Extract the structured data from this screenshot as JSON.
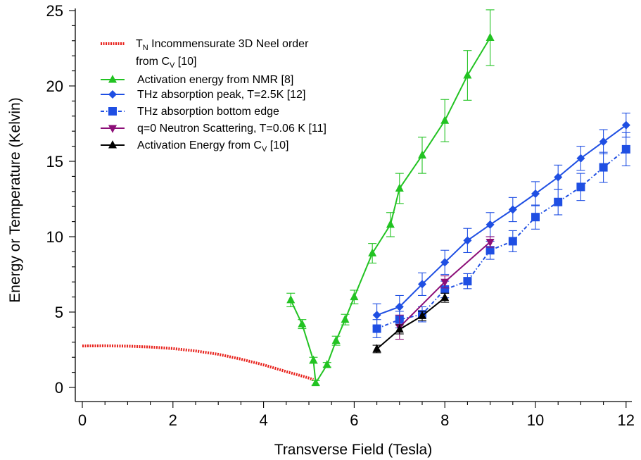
{
  "chart_data": {
    "type": "line",
    "xlabel": "Transverse Field (Tesla)",
    "ylabel": "Energy or Temperature (Kelvin)",
    "xlim": [
      0,
      12
    ],
    "ylim": [
      0,
      25
    ],
    "xticks": [
      "0",
      "2",
      "4",
      "6",
      "8",
      "10",
      "12"
    ],
    "yticks": [
      "0",
      "5",
      "10",
      "15",
      "20",
      "25"
    ],
    "grid": false,
    "legend_position": "top-left",
    "series": [
      {
        "key": "tn",
        "legend": [
          "T",
          "N",
          " Incommensurate 3D Neel order",
          "from C",
          "V",
          " [10]"
        ],
        "color": "#e8221c",
        "line": "dotted",
        "marker": "none",
        "x": [
          0,
          0.5,
          1,
          1.5,
          2,
          2.5,
          3,
          3.5,
          4,
          4.5,
          4.8,
          5.0,
          5.1
        ],
        "y": [
          2.75,
          2.76,
          2.74,
          2.68,
          2.58,
          2.42,
          2.2,
          1.88,
          1.5,
          1.05,
          0.8,
          0.62,
          0.52
        ],
        "err": []
      },
      {
        "key": "nmr",
        "legend": [
          " Activation energy from NMR [8]"
        ],
        "color": "#22c322",
        "line": "solid",
        "marker": "triangle-up",
        "x": [
          4.6,
          4.85,
          5.1,
          5.15,
          5.4,
          5.6,
          5.8,
          6.0,
          6.4,
          6.8,
          7.0,
          7.5,
          8.0,
          8.5,
          9.0
        ],
        "y": [
          5.8,
          4.2,
          1.8,
          0.3,
          1.5,
          3.1,
          4.5,
          6.0,
          8.9,
          10.8,
          13.2,
          15.4,
          17.7,
          20.7,
          23.2
        ],
        "err": [
          0.45,
          0.3,
          0.2,
          0.15,
          0.15,
          0.3,
          0.35,
          0.45,
          0.65,
          0.8,
          1.0,
          1.2,
          1.4,
          1.65,
          1.85
        ]
      },
      {
        "key": "thz_peak",
        "legend": [
          "THz absorption peak, T=2.5K [12]"
        ],
        "color": "#1f4fe3",
        "line": "solid",
        "marker": "diamond",
        "x": [
          6.5,
          7.0,
          7.5,
          8.0,
          8.5,
          9.0,
          9.5,
          10.0,
          10.5,
          11.0,
          11.5,
          12.0
        ],
        "y": [
          4.8,
          5.35,
          6.85,
          8.3,
          9.75,
          10.8,
          11.8,
          12.85,
          13.95,
          15.2,
          16.3,
          17.4
        ],
        "err": [
          0.75,
          0.75,
          0.75,
          0.8,
          0.8,
          0.8,
          0.8,
          0.8,
          0.8,
          0.8,
          0.8,
          0.8
        ]
      },
      {
        "key": "thz_edge",
        "legend": [
          "THz absorption bottom edge"
        ],
        "color": "#1f4fe3",
        "line": "dash-dot",
        "marker": "square",
        "x": [
          6.5,
          7.0,
          7.5,
          8.0,
          8.5,
          9.0,
          9.5,
          10.0,
          10.5,
          11.0,
          11.5,
          12.0
        ],
        "y": [
          3.9,
          4.5,
          4.85,
          6.5,
          7.05,
          9.1,
          9.7,
          11.3,
          12.3,
          13.3,
          14.6,
          15.8
        ],
        "err": [
          0.6,
          0.55,
          0.5,
          0.55,
          0.5,
          0.6,
          0.7,
          0.8,
          0.85,
          0.9,
          1.0,
          1.1
        ]
      },
      {
        "key": "neutron",
        "legend": [
          "q=0 Neutron Scattering, T=0.06 K [11]"
        ],
        "color": "#8c0f78",
        "line": "solid",
        "marker": "triangle-down",
        "x": [
          7.0,
          8.0,
          9.0
        ],
        "y": [
          4.0,
          7.0,
          9.65
        ],
        "err": [
          0.8,
          0.4,
          0.35
        ]
      },
      {
        "key": "cv",
        "legend": [
          "Activation Energy from  C",
          "V",
          " [10]"
        ],
        "color": "#000000",
        "line": "solid",
        "marker": "triangle-up",
        "x": [
          6.5,
          7.0,
          7.5,
          8.0
        ],
        "y": [
          2.55,
          3.85,
          4.75,
          5.95
        ],
        "err": [
          0.25,
          0.3,
          0.3,
          0.3
        ]
      }
    ]
  }
}
